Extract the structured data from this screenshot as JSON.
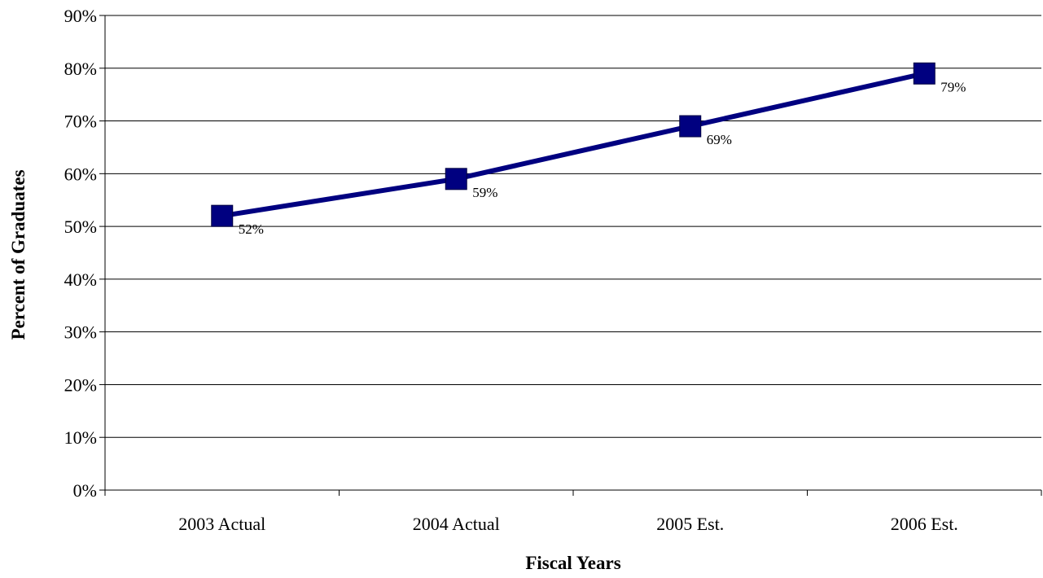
{
  "chart_data": {
    "type": "line",
    "title": "",
    "xlabel": "Fiscal Years",
    "ylabel": "Percent of Graduates",
    "categories": [
      "2003 Actual",
      "2004 Actual",
      "2005 Est.",
      "2006 Est."
    ],
    "series": [
      {
        "values": [
          52,
          59,
          69,
          79
        ],
        "data_labels": [
          "52%",
          "59%",
          "69%",
          "79%"
        ],
        "color": "#000080",
        "marker": "square"
      }
    ],
    "ylim": [
      0,
      90
    ],
    "yticks": [
      0,
      10,
      20,
      30,
      40,
      50,
      60,
      70,
      80,
      90
    ],
    "ytick_labels": [
      "0%",
      "10%",
      "20%",
      "30%",
      "40%",
      "50%",
      "60%",
      "70%",
      "80%",
      "90%"
    ],
    "grid": "horizontal",
    "legend": "none"
  }
}
